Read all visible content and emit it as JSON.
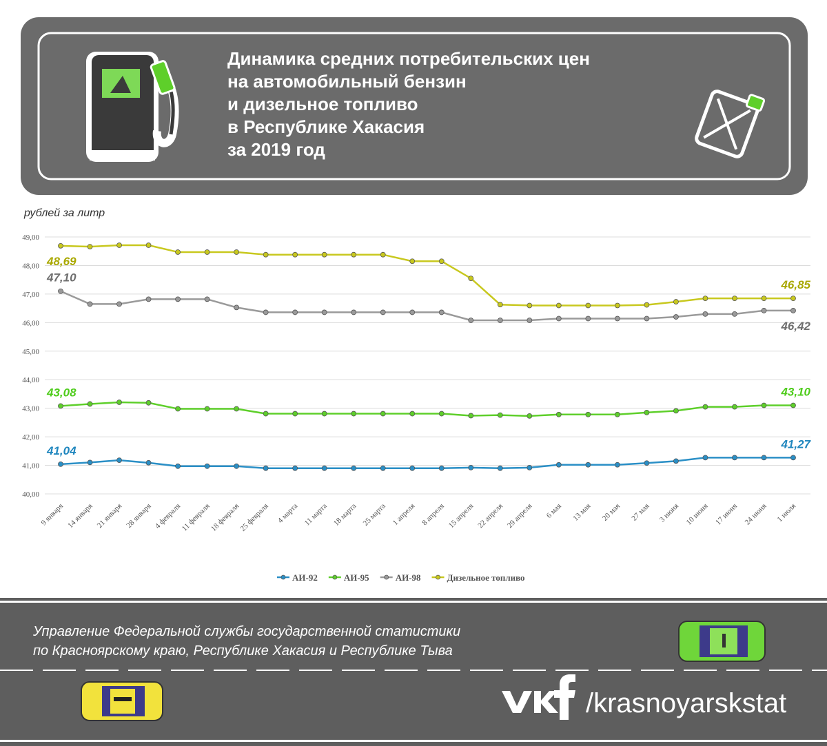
{
  "header": {
    "title_lines": [
      "Динамика средних потребительских цен",
      "на автомобильный бензин",
      "и дизельное топливо",
      "в Республике Хакасия",
      "за 2019 год"
    ]
  },
  "chart_data": {
    "type": "line",
    "y_label": "рублей за литр",
    "categories": [
      "9 января",
      "14 января",
      "21 января",
      "28 января",
      "4 февраля",
      "11 февраля",
      "18 февраля",
      "25 февраля",
      "4 марта",
      "11 марта",
      "18 марта",
      "25 марта",
      "1 апреля",
      "8 апреля",
      "15 апреля",
      "22 апреля",
      "29 апреля",
      "6 мая",
      "13 мая",
      "20 мая",
      "27 мая",
      "3 июня",
      "10 июня",
      "17 июня",
      "24 июня",
      "1 июля"
    ],
    "ylim": [
      40,
      49
    ],
    "yticks": [
      {
        "value": 40,
        "label": "40,00"
      },
      {
        "value": 41,
        "label": "41,00"
      },
      {
        "value": 42,
        "label": "42,00"
      },
      {
        "value": 43,
        "label": "43,00"
      },
      {
        "value": 44,
        "label": "44,00"
      },
      {
        "value": 45,
        "label": "45,00"
      },
      {
        "value": 46,
        "label": "46,00"
      },
      {
        "value": 47,
        "label": "47,00"
      },
      {
        "value": 48,
        "label": "48,00"
      },
      {
        "value": 49,
        "label": "49,00"
      }
    ],
    "grid": true,
    "legend": "bottom",
    "series": [
      {
        "name": "АИ-92",
        "color": "#2a8fc6",
        "label_color": "#1f86be",
        "values": [
          41.04,
          41.1,
          41.18,
          41.09,
          40.97,
          40.97,
          40.97,
          40.9,
          40.9,
          40.9,
          40.9,
          40.9,
          40.9,
          40.9,
          40.92,
          40.9,
          40.92,
          41.02,
          41.02,
          41.02,
          41.08,
          41.15,
          41.27,
          41.27,
          41.27,
          41.27
        ],
        "value_labels": [
          "41,04",
          null,
          null,
          null,
          null,
          null,
          null,
          null,
          null,
          null,
          null,
          null,
          null,
          null,
          null,
          null,
          null,
          null,
          null,
          null,
          null,
          null,
          null,
          null,
          null,
          "41,27"
        ]
      },
      {
        "name": "АИ-95",
        "color": "#5ecf2a",
        "label_color": "#4fcc1c",
        "values": [
          43.08,
          43.15,
          43.21,
          43.19,
          42.98,
          42.98,
          42.98,
          42.81,
          42.81,
          42.81,
          42.81,
          42.81,
          42.81,
          42.81,
          42.74,
          42.76,
          42.73,
          42.78,
          42.78,
          42.78,
          42.85,
          42.91,
          43.05,
          43.05,
          43.1,
          43.1
        ],
        "value_labels": [
          "43,08",
          null,
          null,
          null,
          null,
          null,
          null,
          null,
          null,
          null,
          null,
          null,
          null,
          null,
          null,
          null,
          null,
          null,
          null,
          null,
          null,
          null,
          null,
          null,
          null,
          "43,10"
        ]
      },
      {
        "name": "АИ-98",
        "color": "#9a9a9a",
        "label_color": "#6e6e6e",
        "values": [
          47.1,
          46.65,
          46.65,
          46.82,
          46.82,
          46.82,
          46.53,
          46.36,
          46.36,
          46.36,
          46.36,
          46.36,
          46.36,
          46.36,
          46.08,
          46.08,
          46.08,
          46.14,
          46.14,
          46.14,
          46.14,
          46.2,
          46.3,
          46.3,
          46.42,
          46.42
        ],
        "value_labels": [
          "47,10",
          null,
          null,
          null,
          null,
          null,
          null,
          null,
          null,
          null,
          null,
          null,
          null,
          null,
          null,
          null,
          null,
          null,
          null,
          null,
          null,
          null,
          null,
          null,
          null,
          "46,42"
        ]
      },
      {
        "name": "Дизельное топливо",
        "color": "#c8c81e",
        "label_color": "#a9a800",
        "values": [
          48.69,
          48.66,
          48.71,
          48.71,
          48.47,
          48.47,
          48.47,
          48.38,
          48.38,
          48.38,
          48.38,
          48.38,
          48.15,
          48.15,
          47.55,
          46.63,
          46.6,
          46.6,
          46.6,
          46.6,
          46.62,
          46.73,
          46.85,
          46.85,
          46.85,
          46.85
        ],
        "value_labels": [
          "48,69",
          null,
          null,
          null,
          null,
          null,
          null,
          null,
          null,
          null,
          null,
          null,
          null,
          null,
          null,
          null,
          null,
          null,
          null,
          null,
          null,
          null,
          null,
          null,
          null,
          "46,85"
        ]
      }
    ]
  },
  "footer": {
    "org_lines": [
      "Управление Федеральной службы государственной статистики",
      "по Красноярскому краю, Республике Хакасия и Республике Тыва"
    ],
    "handle": "/krasnoyarskstat"
  }
}
